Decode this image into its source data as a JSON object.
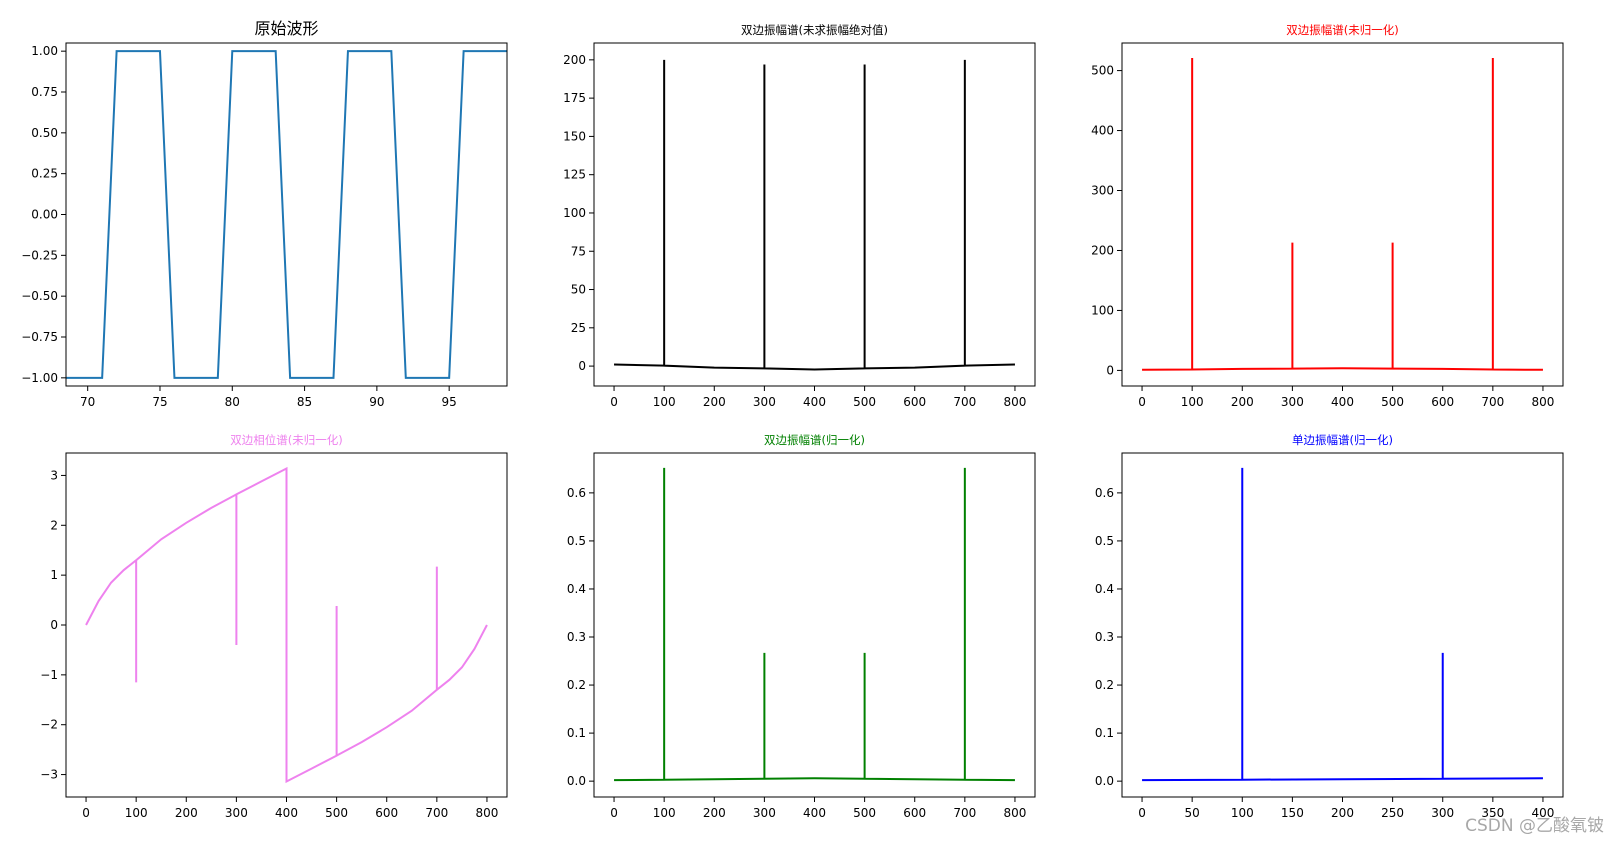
{
  "watermark": "CSDN @乙酸氧铍",
  "chart_data": [
    {
      "id": "p1",
      "type": "line",
      "title": "原始波形",
      "title_color": "#000000",
      "title_size": "large",
      "color": "#1f77b4",
      "xlim": [
        68.5,
        99
      ],
      "ylim": [
        -1.05,
        1.05
      ],
      "xticks": [
        70,
        75,
        80,
        85,
        90,
        95
      ],
      "yticks": [
        1.0,
        0.75,
        0.5,
        0.25,
        0.0,
        -0.25,
        -0.5,
        -0.75,
        -1.0
      ],
      "ytick_labels": [
        "1.00",
        "0.75",
        "0.50",
        "0.25",
        "0.00",
        "−0.25",
        "−0.50",
        "−0.75",
        "−1.00"
      ],
      "series": [
        {
          "x": [
            68.5,
            71,
            72,
            75,
            76,
            79,
            80,
            83,
            84,
            87,
            88,
            91,
            92,
            95,
            96,
            99
          ],
          "y": [
            -1,
            -1,
            1,
            1,
            -1,
            -1,
            1,
            1,
            -1,
            -1,
            1,
            1,
            -1,
            -1,
            1,
            1
          ]
        }
      ]
    },
    {
      "id": "p2",
      "type": "line",
      "title": "双边振幅谱(未求振幅绝对值)",
      "title_color": "#000000",
      "color": "#000000",
      "xlim": [
        -40,
        840
      ],
      "ylim": [
        -13,
        211
      ],
      "xticks": [
        0,
        100,
        200,
        300,
        400,
        500,
        600,
        700,
        800
      ],
      "yticks": [
        200,
        175,
        150,
        125,
        100,
        75,
        50,
        25,
        0
      ],
      "series": [
        {
          "x": [
            0,
            100,
            100,
            100,
            200,
            300,
            300,
            300,
            400,
            500,
            500,
            500,
            600,
            700,
            700,
            700,
            800
          ],
          "y": [
            1,
            0.3,
            200,
            0.3,
            -1,
            -1.5,
            197,
            -1.5,
            -2.2,
            -1.5,
            197,
            -1.5,
            -1,
            0.3,
            200,
            0.3,
            1
          ]
        }
      ]
    },
    {
      "id": "p3",
      "type": "line",
      "title": "双边振幅谱(未归一化)",
      "title_color": "#ff0000",
      "color": "#ff0000",
      "xlim": [
        -40,
        840
      ],
      "ylim": [
        -26,
        546
      ],
      "xticks": [
        0,
        100,
        200,
        300,
        400,
        500,
        600,
        700,
        800
      ],
      "yticks": [
        500,
        400,
        300,
        200,
        100,
        0
      ],
      "series": [
        {
          "x": [
            0,
            100,
            100,
            100,
            200,
            300,
            300,
            300,
            400,
            500,
            500,
            500,
            600,
            700,
            700,
            700,
            800
          ],
          "y": [
            1,
            1.5,
            521,
            1.5,
            2.5,
            3,
            213,
            3,
            3.5,
            3,
            213,
            3,
            2.5,
            1.5,
            521,
            1.5,
            1
          ]
        }
      ]
    },
    {
      "id": "p4",
      "type": "line",
      "title": "双边相位谱(未归一化)",
      "title_color": "#ee82ee",
      "color": "#ee82ee",
      "xlim": [
        -40,
        840
      ],
      "ylim": [
        -3.45,
        3.45
      ],
      "xticks": [
        0,
        100,
        200,
        300,
        400,
        500,
        600,
        700,
        800
      ],
      "yticks": [
        3,
        2,
        1,
        0,
        -1,
        -2,
        -3
      ],
      "ytick_labels": [
        "3",
        "2",
        "1",
        "0",
        "−1",
        "−2",
        "−3"
      ],
      "series": [
        {
          "x": [
            0,
            25,
            50,
            75,
            100,
            100,
            100,
            150,
            200,
            250,
            300,
            300,
            300,
            350,
            400,
            400,
            450,
            500,
            500,
            500,
            550,
            600,
            650,
            700,
            700,
            700,
            725,
            750,
            775,
            800
          ],
          "y": [
            0,
            0.48,
            0.85,
            1.1,
            1.3,
            -1.15,
            1.3,
            1.72,
            2.05,
            2.35,
            2.62,
            -0.4,
            2.62,
            2.88,
            3.14,
            -3.14,
            -2.88,
            -2.62,
            0.38,
            -2.62,
            -2.35,
            -2.05,
            -1.72,
            -1.3,
            1.17,
            -1.3,
            -1.1,
            -0.85,
            -0.48,
            0
          ]
        }
      ]
    },
    {
      "id": "p5",
      "type": "line",
      "title": "双边振幅谱(归一化)",
      "title_color": "#008000",
      "color": "#008000",
      "xlim": [
        -40,
        840
      ],
      "ylim": [
        -0.033,
        0.683
      ],
      "xticks": [
        0,
        100,
        200,
        300,
        400,
        500,
        600,
        700,
        800
      ],
      "yticks": [
        0.6,
        0.5,
        0.4,
        0.3,
        0.2,
        0.1,
        0.0
      ],
      "ytick_labels": [
        "0.6",
        "0.5",
        "0.4",
        "0.3",
        "0.2",
        "0.1",
        "0.0"
      ],
      "series": [
        {
          "x": [
            0,
            100,
            100,
            100,
            200,
            300,
            300,
            300,
            400,
            500,
            500,
            500,
            600,
            700,
            700,
            700,
            800
          ],
          "y": [
            0.002,
            0.003,
            0.652,
            0.003,
            0.004,
            0.005,
            0.267,
            0.005,
            0.006,
            0.005,
            0.267,
            0.005,
            0.004,
            0.003,
            0.652,
            0.003,
            0.002
          ]
        }
      ]
    },
    {
      "id": "p6",
      "type": "line",
      "title": "单边振幅谱(归一化)",
      "title_color": "#0000ff",
      "color": "#0000ff",
      "xlim": [
        -20,
        420
      ],
      "ylim": [
        -0.033,
        0.683
      ],
      "xticks": [
        0,
        50,
        100,
        150,
        200,
        250,
        300,
        350,
        400
      ],
      "yticks": [
        0.6,
        0.5,
        0.4,
        0.3,
        0.2,
        0.1,
        0.0
      ],
      "ytick_labels": [
        "0.6",
        "0.5",
        "0.4",
        "0.3",
        "0.2",
        "0.1",
        "0.0"
      ],
      "series": [
        {
          "x": [
            0,
            100,
            100,
            100,
            200,
            300,
            300,
            300,
            400
          ],
          "y": [
            0.002,
            0.003,
            0.652,
            0.003,
            0.004,
            0.005,
            0.267,
            0.005,
            0.006
          ]
        }
      ]
    }
  ]
}
